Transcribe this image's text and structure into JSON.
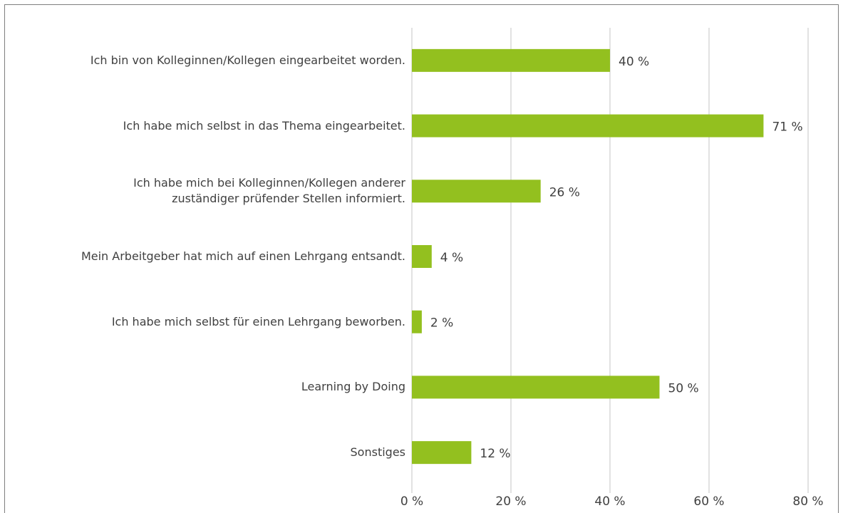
{
  "chart_data": {
    "type": "bar",
    "orientation": "horizontal",
    "categories": [
      "Ich bin von Kolleginnen/Kollegen eingearbeitet worden.",
      "Ich habe mich selbst in das Thema eingearbeitet.",
      "Ich habe mich bei Kolleginnen/Kollegen anderer\nzuständiger prüfender Stellen informiert.",
      "Mein Arbeitgeber hat mich auf einen Lehrgang entsandt.",
      "Ich habe mich selbst für einen Lehrgang beworben.",
      "Learning by Doing",
      "Sonstiges"
    ],
    "values": [
      40,
      71,
      26,
      4,
      2,
      50,
      12
    ],
    "value_labels": [
      "40 %",
      "71 %",
      "26 %",
      "4 %",
      "2 %",
      "50 %",
      "12 %"
    ],
    "color": "#93c01f",
    "xlim": [
      0,
      80
    ],
    "xticks": [
      {
        "value": 0,
        "label": "0 %"
      },
      {
        "value": 20,
        "label": "20 %"
      },
      {
        "value": 40,
        "label": "40 %"
      },
      {
        "value": 60,
        "label": "60 %"
      },
      {
        "value": 80,
        "label": "80 %"
      }
    ],
    "grid": true
  }
}
